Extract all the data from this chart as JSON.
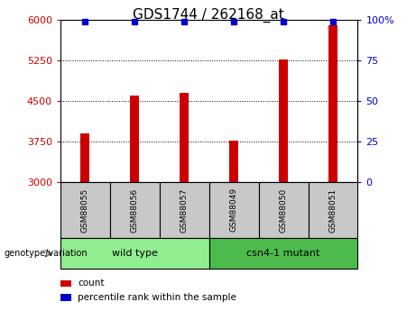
{
  "title": "GDS1744 / 262168_at",
  "samples": [
    "GSM88055",
    "GSM88056",
    "GSM88057",
    "GSM88049",
    "GSM88050",
    "GSM88051"
  ],
  "bar_values": [
    3900,
    4600,
    4650,
    3760,
    5270,
    5900
  ],
  "percentile_values": [
    99,
    99,
    99,
    99,
    99,
    99
  ],
  "bar_color": "#cc0000",
  "percentile_color": "#0000cc",
  "ylim_left": [
    3000,
    6000
  ],
  "ylim_right": [
    0,
    100
  ],
  "yticks_left": [
    3000,
    3750,
    4500,
    5250,
    6000
  ],
  "yticks_right": [
    0,
    25,
    50,
    75,
    100
  ],
  "groups": [
    {
      "label": "wild type",
      "indices": [
        0,
        1,
        2
      ],
      "color": "#90ee90"
    },
    {
      "label": "csn4-1 mutant",
      "indices": [
        3,
        4,
        5
      ],
      "color": "#4cbb4c"
    }
  ],
  "group_label": "genotype/variation",
  "legend_count_label": "count",
  "legend_pct_label": "percentile rank within the sample",
  "background_group_box": "#c8c8c8",
  "title_fontsize": 11,
  "axis_tick_fontsize": 8,
  "bar_width": 0.18
}
